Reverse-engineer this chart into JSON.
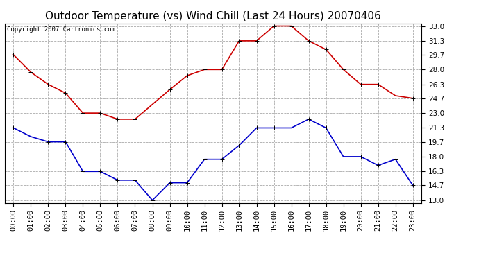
{
  "title": "Outdoor Temperature (vs) Wind Chill (Last 24 Hours) 20070406",
  "copyright_text": "Copyright 2007 Cartronics.com",
  "hours": [
    "00:00",
    "01:00",
    "02:00",
    "03:00",
    "04:00",
    "05:00",
    "06:00",
    "07:00",
    "08:00",
    "09:00",
    "10:00",
    "11:00",
    "12:00",
    "13:00",
    "14:00",
    "15:00",
    "16:00",
    "17:00",
    "18:00",
    "19:00",
    "20:00",
    "21:00",
    "22:00",
    "23:00"
  ],
  "temp": [
    29.7,
    27.7,
    26.3,
    25.3,
    23.0,
    23.0,
    22.3,
    22.3,
    24.0,
    25.7,
    27.3,
    28.0,
    28.0,
    31.3,
    31.3,
    33.0,
    33.0,
    31.3,
    30.3,
    28.0,
    26.3,
    26.3,
    25.0,
    24.7
  ],
  "windchill": [
    21.3,
    20.3,
    19.7,
    19.7,
    16.3,
    16.3,
    15.3,
    15.3,
    13.0,
    15.0,
    15.0,
    17.7,
    17.7,
    19.3,
    21.3,
    21.3,
    21.3,
    22.3,
    21.3,
    18.0,
    18.0,
    17.0,
    17.7,
    14.7
  ],
  "temp_color": "#cc0000",
  "windchill_color": "#0000cc",
  "ylim_min": 13.0,
  "ylim_max": 33.0,
  "yticks": [
    13.0,
    14.7,
    16.3,
    18.0,
    19.7,
    21.3,
    23.0,
    24.7,
    26.3,
    28.0,
    29.7,
    31.3,
    33.0
  ],
  "background_color": "#ffffff",
  "plot_bg_color": "#ffffff",
  "grid_color": "#aaaaaa",
  "title_fontsize": 11,
  "tick_fontsize": 7.5,
  "marker": "+",
  "marker_size": 4,
  "line_width": 1.2
}
